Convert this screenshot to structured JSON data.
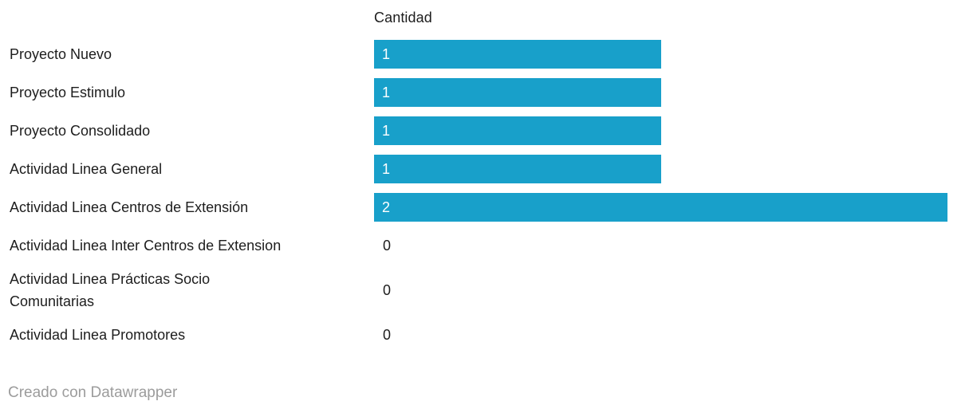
{
  "chart_data": {
    "type": "bar",
    "orientation": "horizontal",
    "title": "",
    "value_column_header": "Cantidad",
    "categories": [
      "Proyecto Nuevo",
      "Proyecto Estimulo",
      "Proyecto Consolidado",
      "Actividad Linea General",
      "Actividad Linea Centros de Extensión",
      "Actividad Linea Inter Centros de Extension",
      "Actividad Linea Prácticas Socio Comunitarias",
      "Actividad Linea Promotores"
    ],
    "values": [
      1,
      1,
      1,
      1,
      2,
      0,
      0,
      0
    ],
    "xlim": [
      0,
      2
    ],
    "grid": false,
    "legend": false,
    "bar_color": "#18a0ca",
    "display": {
      "wrapped_lines": {
        "6": [
          "Actividad Linea Prácticas Socio",
          "Comunitarias"
        ]
      }
    }
  },
  "footer": {
    "attribution": "Creado con Datawrapper"
  },
  "colors": {
    "bar": "#18a0ca",
    "label_text": "#1d1d1d",
    "bar_value_text": "#ffffff",
    "zero_value_text": "#1d1d1d",
    "attribution_text": "#9c9c9c",
    "background": "#ffffff"
  }
}
